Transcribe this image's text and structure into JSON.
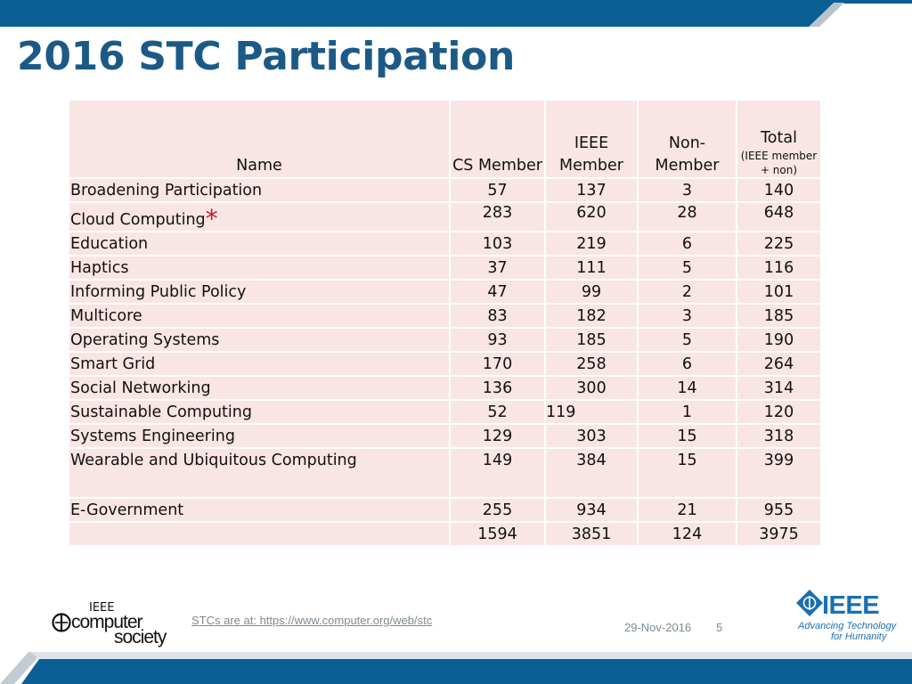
{
  "slide": {
    "title": "2016 STC Participation"
  },
  "table": {
    "headers": {
      "name": "Name",
      "cs_member": "CS Member",
      "ieee_member_l1": "IEEE",
      "ieee_member_l2": "Member",
      "non_member_l1": "Non-",
      "non_member_l2": "Member",
      "total": "Total",
      "total_note": "(IEEE member + non)"
    },
    "rows": [
      {
        "name": "Broadening Participation",
        "cs": "57",
        "ieee": "137",
        "non": "3",
        "total": "140"
      },
      {
        "name": "Cloud Computing",
        "mark": "*",
        "cs": "283",
        "ieee": "620",
        "non": "28",
        "total": "648"
      },
      {
        "name": "Education",
        "cs": "103",
        "ieee": "219",
        "non": "6",
        "total": "225"
      },
      {
        "name": "Haptics",
        "cs": "37",
        "ieee": "111",
        "non": "5",
        "total": "116"
      },
      {
        "name": "Informing Public Policy",
        "cs": "47",
        "ieee": "99",
        "non": "2",
        "total": "101"
      },
      {
        "name": "Multicore",
        "cs": "83",
        "ieee": "182",
        "non": "3",
        "total": "185"
      },
      {
        "name": "Operating Systems",
        "cs": "93",
        "ieee": "185",
        "non": "5",
        "total": "190"
      },
      {
        "name": "Smart Grid",
        "cs": "170",
        "ieee": "258",
        "non": "6",
        "total": "264"
      },
      {
        "name": "Social Networking",
        "cs": "136",
        "ieee": "300",
        "non": "14",
        "total": "314"
      },
      {
        "name": "Sustainable Computing",
        "cs": "52",
        "ieee": "119",
        "non": "1",
        "total": "120"
      },
      {
        "name": "Systems Engineering",
        "cs": "129",
        "ieee": "303",
        "non": "15",
        "total": "318"
      },
      {
        "name": "Wearable and Ubiquitous Computing",
        "cs": "149",
        "ieee": "384",
        "non": "15",
        "total": "399"
      },
      {
        "name": "E-Government",
        "cs": "255",
        "ieee": "934",
        "non": "21",
        "total": "955"
      }
    ],
    "totals": {
      "name": "",
      "cs": "1594",
      "ieee": "3851",
      "non": "124",
      "total": "3975"
    }
  },
  "footer": {
    "link_text": "STCs are at: https://www.computer.org/web/stc",
    "date": "29-Nov-2016",
    "page": "5"
  },
  "logos": {
    "cs_ieee": "IEEE",
    "cs_line1": "computer",
    "cs_line2": "society",
    "ieee_word": "IEEE",
    "ieee_tag1": "Advancing Technology",
    "ieee_tag2": "for Humanity"
  },
  "colors": {
    "title": "#1b5a86",
    "band": "#0c5f94",
    "cell_fill": "#f9e5e4",
    "ieee_blue": "#1a6fb3",
    "asterisk": "#c0192b"
  }
}
